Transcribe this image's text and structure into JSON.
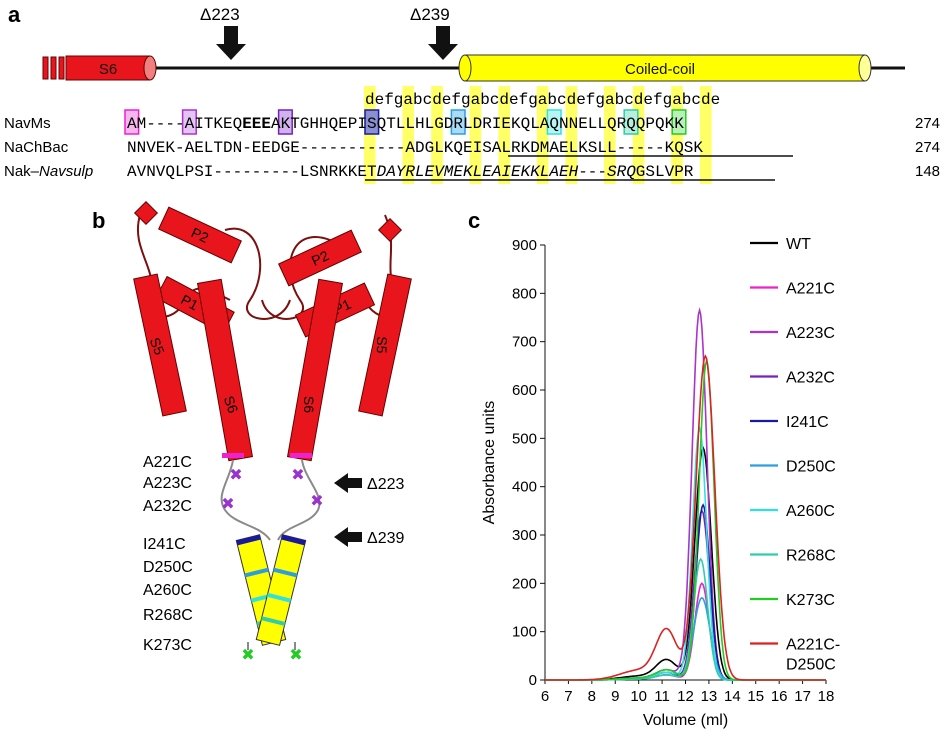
{
  "panels": {
    "a": "a",
    "b": "b",
    "c": "c"
  },
  "panel_a": {
    "arrows": [
      "Δ223",
      "Δ239"
    ],
    "segment_labels": [
      "S6",
      "Coiled-coil"
    ],
    "heptad": "defgabcdefgabcdefgabcdefgabcdefgabcde",
    "sequences": [
      {
        "name": "NavMs",
        "seq": "AM----AITKEQEEEAKTGHHQEPISQTLLHLGDRLDRIEKQLAQNNELLQRQQPQKK",
        "end": "274"
      },
      {
        "name": "NaChBac",
        "seq": "NNVEK-AELTDN-EEDGE-----------ADGLKQEISALRKDMAELKSLL-----KQSK",
        "end": "274"
      },
      {
        "name_plain": "Nak–",
        "name_italic": "Navsulp",
        "seq": "AVNVQLPSI---------LSNRKKETDAYRLEVMEKLEAIEKKLAEH---SRQGSLVPR",
        "end": "148"
      }
    ]
  },
  "panel_b": {
    "labels": {
      "p2": "P2",
      "p1": "P1",
      "s5": "S5",
      "s6": "S6"
    },
    "mutations": [
      "A221C",
      "A223C",
      "A232C",
      "I241C",
      "D250C",
      "A260C",
      "R268C",
      "K273C"
    ],
    "deletions": [
      "Δ223",
      "Δ239"
    ]
  },
  "chart_data": {
    "type": "line",
    "title": "",
    "xlabel": "Volume (ml)",
    "ylabel": "Absorbance units",
    "xlim": [
      6,
      18
    ],
    "ylim": [
      0,
      900
    ],
    "xticks": [
      6,
      7,
      8,
      9,
      10,
      11,
      12,
      13,
      14,
      15,
      16,
      17,
      18
    ],
    "yticks": [
      0,
      100,
      200,
      300,
      400,
      500,
      600,
      700,
      800,
      900
    ],
    "legend_position": "right",
    "series": [
      {
        "name": "WT",
        "color": "#000000",
        "peak_x": 12.75,
        "peak_y": 480,
        "sigma": 0.35,
        "shoulder_y": 40
      },
      {
        "name": "A221C",
        "color": "#ee22cc",
        "peak_x": 12.7,
        "peak_y": 200,
        "sigma": 0.3,
        "shoulder_y": 10
      },
      {
        "name": "A223C",
        "color": "#aa33cc",
        "peak_x": 12.6,
        "peak_y": 765,
        "sigma": 0.32,
        "shoulder_y": 20
      },
      {
        "name": "A232C",
        "color": "#7722bb",
        "peak_x": 12.7,
        "peak_y": 350,
        "sigma": 0.32,
        "shoulder_y": 15
      },
      {
        "name": "I241C",
        "color": "#1a1aa0",
        "peak_x": 12.75,
        "peak_y": 362,
        "sigma": 0.3,
        "shoulder_y": 15
      },
      {
        "name": "D250C",
        "color": "#2a9ee0",
        "peak_x": 12.7,
        "peak_y": 170,
        "sigma": 0.35,
        "shoulder_y": 10
      },
      {
        "name": "A260C",
        "color": "#33e0e0",
        "peak_x": 12.6,
        "peak_y": 520,
        "sigma": 0.3,
        "shoulder_y": 15
      },
      {
        "name": "R268C",
        "color": "#33ccaa",
        "peak_x": 12.65,
        "peak_y": 250,
        "sigma": 0.3,
        "shoulder_y": 10
      },
      {
        "name": "K273C",
        "color": "#22cc22",
        "peak_x": 12.9,
        "peak_y": 660,
        "sigma": 0.32,
        "shoulder_y": 20
      },
      {
        "name": "A221C-\nD250C",
        "color": "#dd2222",
        "peak_x": 12.85,
        "peak_y": 670,
        "sigma": 0.4,
        "shoulder_y": 100
      }
    ]
  }
}
